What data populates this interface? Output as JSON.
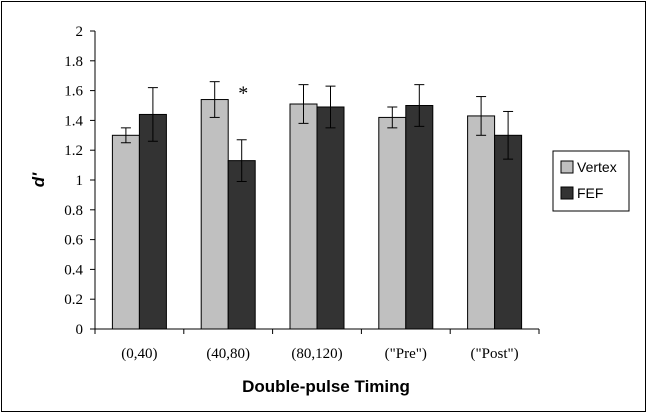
{
  "chart_data": {
    "type": "bar",
    "xlabel": "Double-pulse Timing",
    "ylabel": "d'",
    "ylim": [
      0,
      2
    ],
    "yticks": [
      "0",
      "0.2",
      "0.4",
      "0.6",
      "0.8",
      "1",
      "1.2",
      "1.4",
      "1.6",
      "1.8",
      "2"
    ],
    "categories": [
      "(0,40)",
      "(40,80)",
      "(80,120)",
      "(\"Pre\")",
      "(\"Post\")"
    ],
    "series": [
      {
        "name": "Vertex",
        "color": "#c0c0c0",
        "values": [
          1.3,
          1.54,
          1.51,
          1.42,
          1.43
        ],
        "errors": [
          0.05,
          0.12,
          0.13,
          0.07,
          0.13
        ]
      },
      {
        "name": "FEF",
        "color": "#333333",
        "values": [
          1.44,
          1.13,
          1.49,
          1.5,
          1.3
        ],
        "errors": [
          0.18,
          0.14,
          0.14,
          0.14,
          0.16
        ]
      }
    ],
    "annotations": [
      {
        "text": "*",
        "category_index": 1
      }
    ],
    "legend_position": "right",
    "grid": false
  }
}
